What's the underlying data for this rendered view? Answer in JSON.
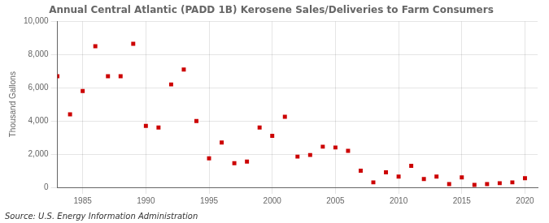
{
  "chart_data": {
    "type": "scatter",
    "title": "Annual Central Atlantic (PADD 1B) Kerosene Sales/Deliveries to Farm Consumers",
    "ylabel": "Thousand Gallons",
    "annotations": [
      "Source: U.S. Energy Information Administration"
    ],
    "x": [
      1983,
      1984,
      1985,
      1986,
      1987,
      1988,
      1989,
      1990,
      1991,
      1992,
      1993,
      1994,
      1995,
      1996,
      1997,
      1998,
      1999,
      2000,
      2001,
      2002,
      2003,
      2004,
      2005,
      2006,
      2007,
      2008,
      2009,
      2010,
      2011,
      2012,
      2013,
      2014,
      2015,
      2016,
      2017,
      2018,
      2019,
      2020
    ],
    "values": [
      6700,
      4400,
      5800,
      8500,
      6700,
      6700,
      8650,
      3700,
      3600,
      6200,
      7100,
      4000,
      1750,
      2700,
      1450,
      1550,
      3600,
      3100,
      4250,
      1850,
      1950,
      2450,
      2400,
      2200,
      1000,
      300,
      900,
      650,
      1300,
      500,
      650,
      200,
      600,
      150,
      200,
      250,
      300,
      550
    ],
    "color": "#cc0000",
    "marker": "square",
    "xlim": [
      1983,
      2021
    ],
    "xticks": [
      1985,
      1990,
      1995,
      2000,
      2005,
      2010,
      2015,
      2020
    ],
    "ylim": [
      0,
      10000
    ],
    "yticks": [
      0,
      {
        "value": 2000,
        "label": "2,000"
      },
      {
        "value": 4000,
        "label": "4,000"
      },
      {
        "value": 6000,
        "label": "6,000"
      },
      {
        "value": 8000,
        "label": "8,000"
      },
      {
        "value": 10000,
        "label": "10,000"
      }
    ],
    "grid": true
  }
}
